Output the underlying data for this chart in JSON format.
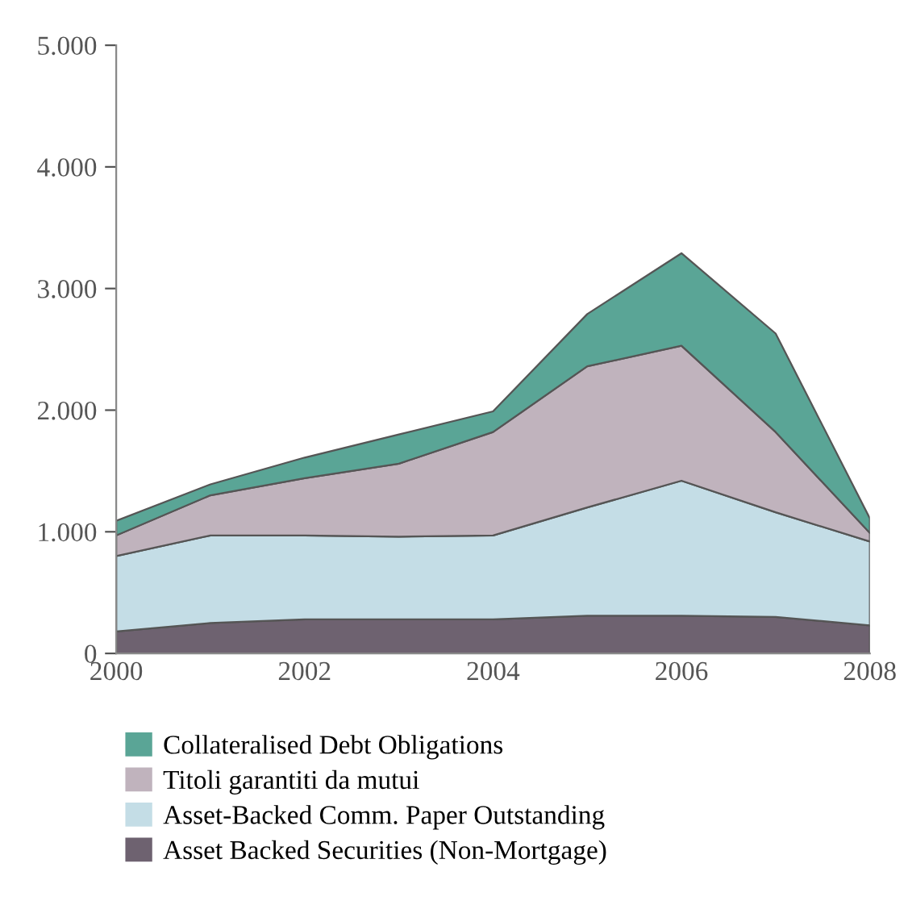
{
  "chart_data": {
    "type": "area",
    "stacked": true,
    "x": [
      2000,
      2001,
      2002,
      2003,
      2004,
      2005,
      2006,
      2007,
      2008
    ],
    "series": [
      {
        "name": "Asset Backed Securities (Non-Mortgage)",
        "color": "#6e6270",
        "values": [
          180,
          250,
          280,
          280,
          280,
          310,
          310,
          300,
          230
        ]
      },
      {
        "name": "Asset-Backed Comm. Paper Outstanding",
        "color": "#c4dde6",
        "values": [
          620,
          720,
          690,
          680,
          690,
          890,
          1110,
          860,
          690
        ]
      },
      {
        "name": "Titoli garantiti da mutui",
        "color": "#c0b3bd",
        "values": [
          170,
          330,
          470,
          600,
          850,
          1160,
          1110,
          660,
          70
        ]
      },
      {
        "name": "Collateralised Debt Obligations",
        "color": "#5aa596",
        "values": [
          120,
          90,
          170,
          240,
          170,
          430,
          760,
          810,
          120
        ]
      }
    ],
    "xlim": [
      2000,
      2008
    ],
    "xticks": [
      2000,
      2002,
      2004,
      2006,
      2008
    ],
    "ylim": [
      0,
      5000
    ],
    "yticks": [
      0,
      {
        "value": 1000,
        "label": "1.000"
      },
      {
        "value": 2000,
        "label": "2.000"
      },
      {
        "value": 3000,
        "label": "3.000"
      },
      {
        "value": 4000,
        "label": "4.000"
      },
      {
        "value": 5000,
        "label": "5.000"
      }
    ],
    "grid": false,
    "legend": "bottom"
  }
}
